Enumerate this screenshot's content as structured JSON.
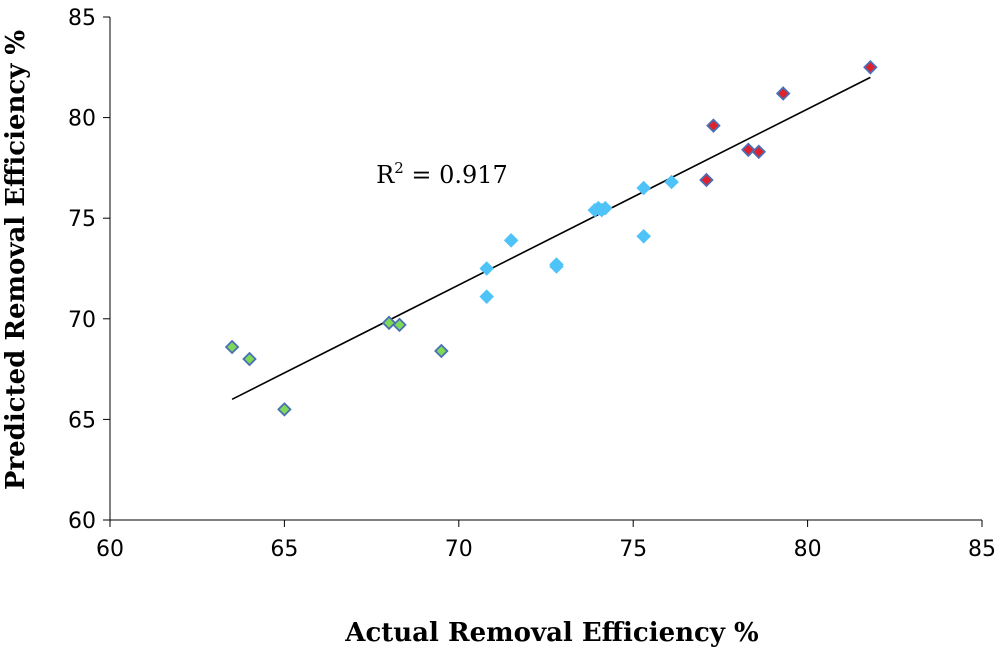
{
  "chart_data": {
    "type": "scatter",
    "xlabel": "Actual Removal Efficiency %",
    "ylabel": "Predicted Removal Efficiency %",
    "xlim": [
      60,
      85
    ],
    "ylim": [
      60,
      85
    ],
    "x_ticks": [
      "60",
      "65",
      "70",
      "75",
      "80",
      "85"
    ],
    "y_ticks": [
      "60",
      "65",
      "70",
      "75",
      "80",
      "85"
    ],
    "grid": false,
    "series": [
      {
        "color": "#7ed957",
        "edge_color": "#4a6fb5",
        "marker": "diamond",
        "points": [
          [
            63.5,
            68.6
          ],
          [
            64.0,
            68.0
          ],
          [
            65.0,
            65.5
          ],
          [
            68.0,
            69.8
          ],
          [
            68.3,
            69.7
          ],
          [
            69.5,
            68.4
          ]
        ]
      },
      {
        "color": "#4fc3f7",
        "edge_color": "#4fc3f7",
        "marker": "diamond",
        "points": [
          [
            70.8,
            72.5
          ],
          [
            70.8,
            71.1
          ],
          [
            71.5,
            73.9
          ],
          [
            72.8,
            72.6
          ],
          [
            72.8,
            72.7
          ],
          [
            73.9,
            75.4
          ],
          [
            74.0,
            75.5
          ],
          [
            74.1,
            75.4
          ],
          [
            74.2,
            75.5
          ],
          [
            75.3,
            76.5
          ],
          [
            75.3,
            74.1
          ],
          [
            76.1,
            76.8
          ]
        ]
      },
      {
        "color": "#e0202a",
        "edge_color": "#4a6fb5",
        "marker": "diamond",
        "points": [
          [
            77.1,
            76.9
          ],
          [
            77.3,
            79.6
          ],
          [
            78.3,
            78.4
          ],
          [
            78.6,
            78.3
          ],
          [
            79.3,
            81.2
          ],
          [
            81.8,
            82.5
          ]
        ]
      }
    ],
    "trendline": {
      "x": [
        63.5,
        81.8
      ],
      "y": [
        66.0,
        82.0
      ],
      "color": "#000000"
    },
    "annotation": {
      "prefix": "R",
      "sup": "2",
      "suffix": " = 0.917",
      "x": 71.5,
      "y": 77.5
    }
  }
}
